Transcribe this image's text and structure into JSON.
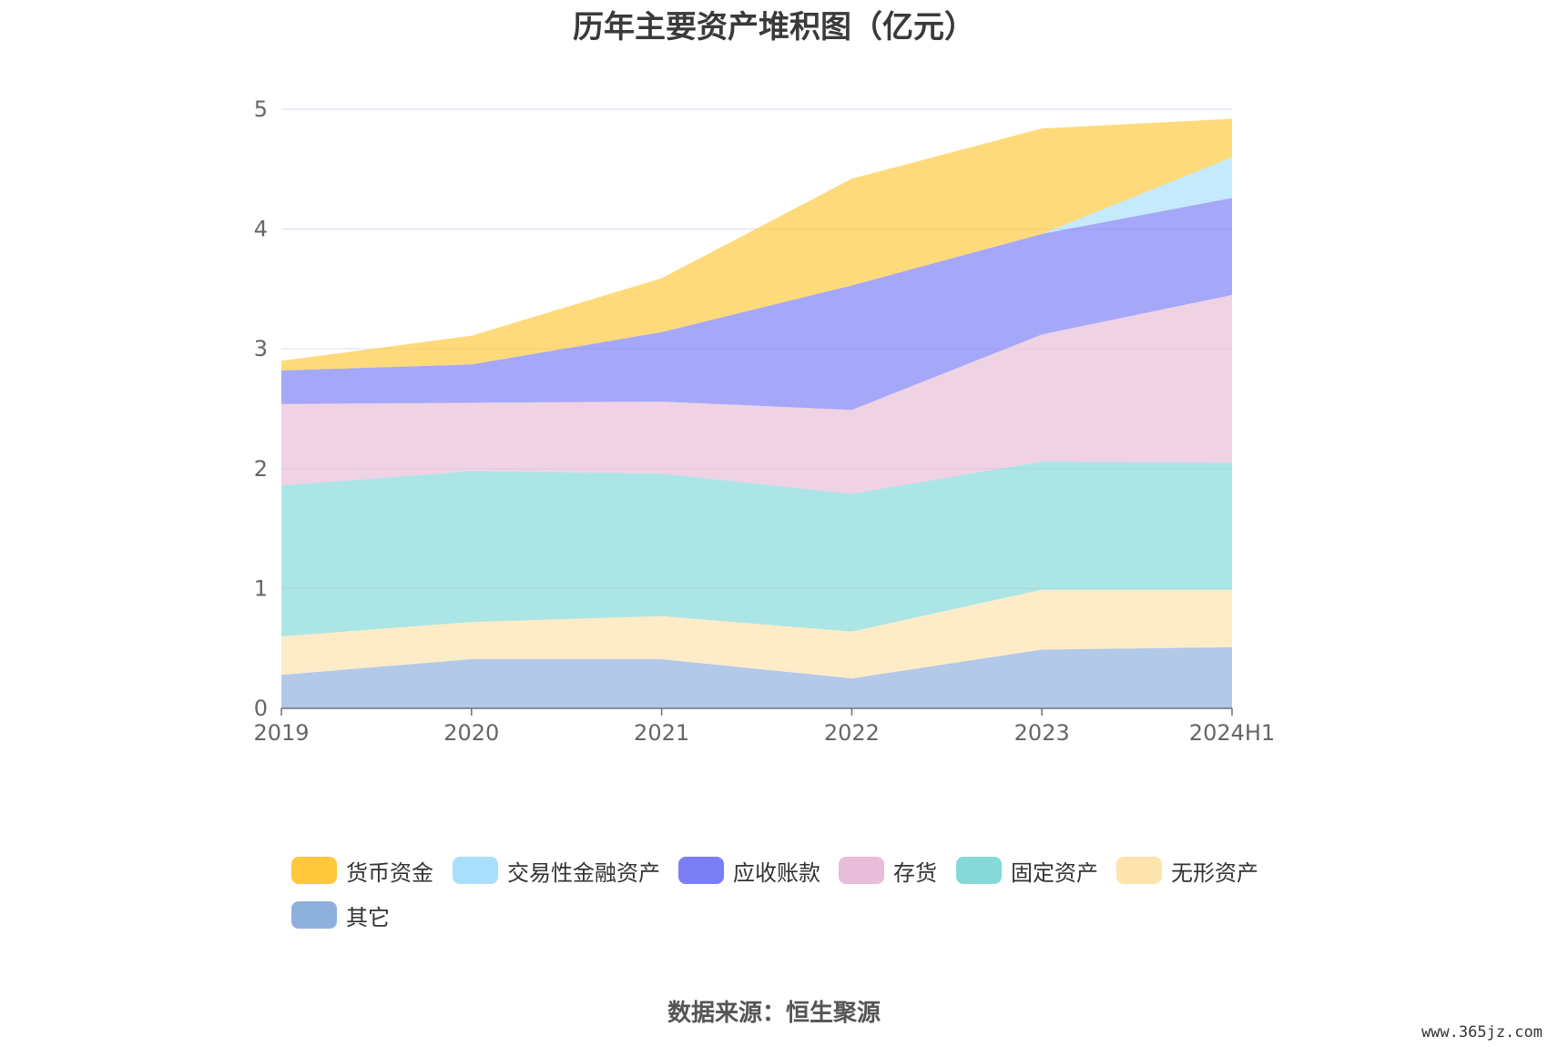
{
  "chart_data": {
    "type": "area",
    "stacked": true,
    "title": "历年主要资产堆积图（亿元）",
    "categories": [
      "2019",
      "2020",
      "2021",
      "2022",
      "2023",
      "2024H1"
    ],
    "ylim": [
      0,
      5
    ],
    "yticks": [
      "0",
      "1",
      "2",
      "3",
      "4",
      "5"
    ],
    "grid": true,
    "legend_position": "bottom",
    "series": [
      {
        "name": "其它",
        "color": "#8eb0dd",
        "values": [
          0.28,
          0.41,
          0.41,
          0.25,
          0.49,
          0.51
        ]
      },
      {
        "name": "无形资产",
        "color": "#fde3ae",
        "values": [
          0.32,
          0.31,
          0.36,
          0.39,
          0.5,
          0.48
        ]
      },
      {
        "name": "固定资产",
        "color": "#85d9d9",
        "values": [
          1.26,
          1.26,
          1.19,
          1.15,
          1.07,
          1.06
        ]
      },
      {
        "name": "存货",
        "color": "#e9bcd9",
        "values": [
          0.68,
          0.57,
          0.6,
          0.7,
          1.06,
          1.4
        ]
      },
      {
        "name": "应收账款",
        "color": "#7b7ff5",
        "values": [
          0.28,
          0.32,
          0.58,
          1.04,
          0.84,
          0.81
        ]
      },
      {
        "name": "交易性金融资产",
        "color": "#a8e0fb",
        "values": [
          0,
          0,
          0,
          0,
          0,
          0.34
        ]
      },
      {
        "name": "货币资金",
        "color": "#ffc83d",
        "values": [
          0.08,
          0.24,
          0.45,
          0.89,
          0.88,
          0.32
        ]
      }
    ]
  },
  "legend_order": [
    "货币资金",
    "交易性金融资产",
    "应收账款",
    "存货",
    "固定资产",
    "无形资产",
    "其它"
  ],
  "source": "数据来源：恒生聚源",
  "watermark": "www.365jz.com"
}
